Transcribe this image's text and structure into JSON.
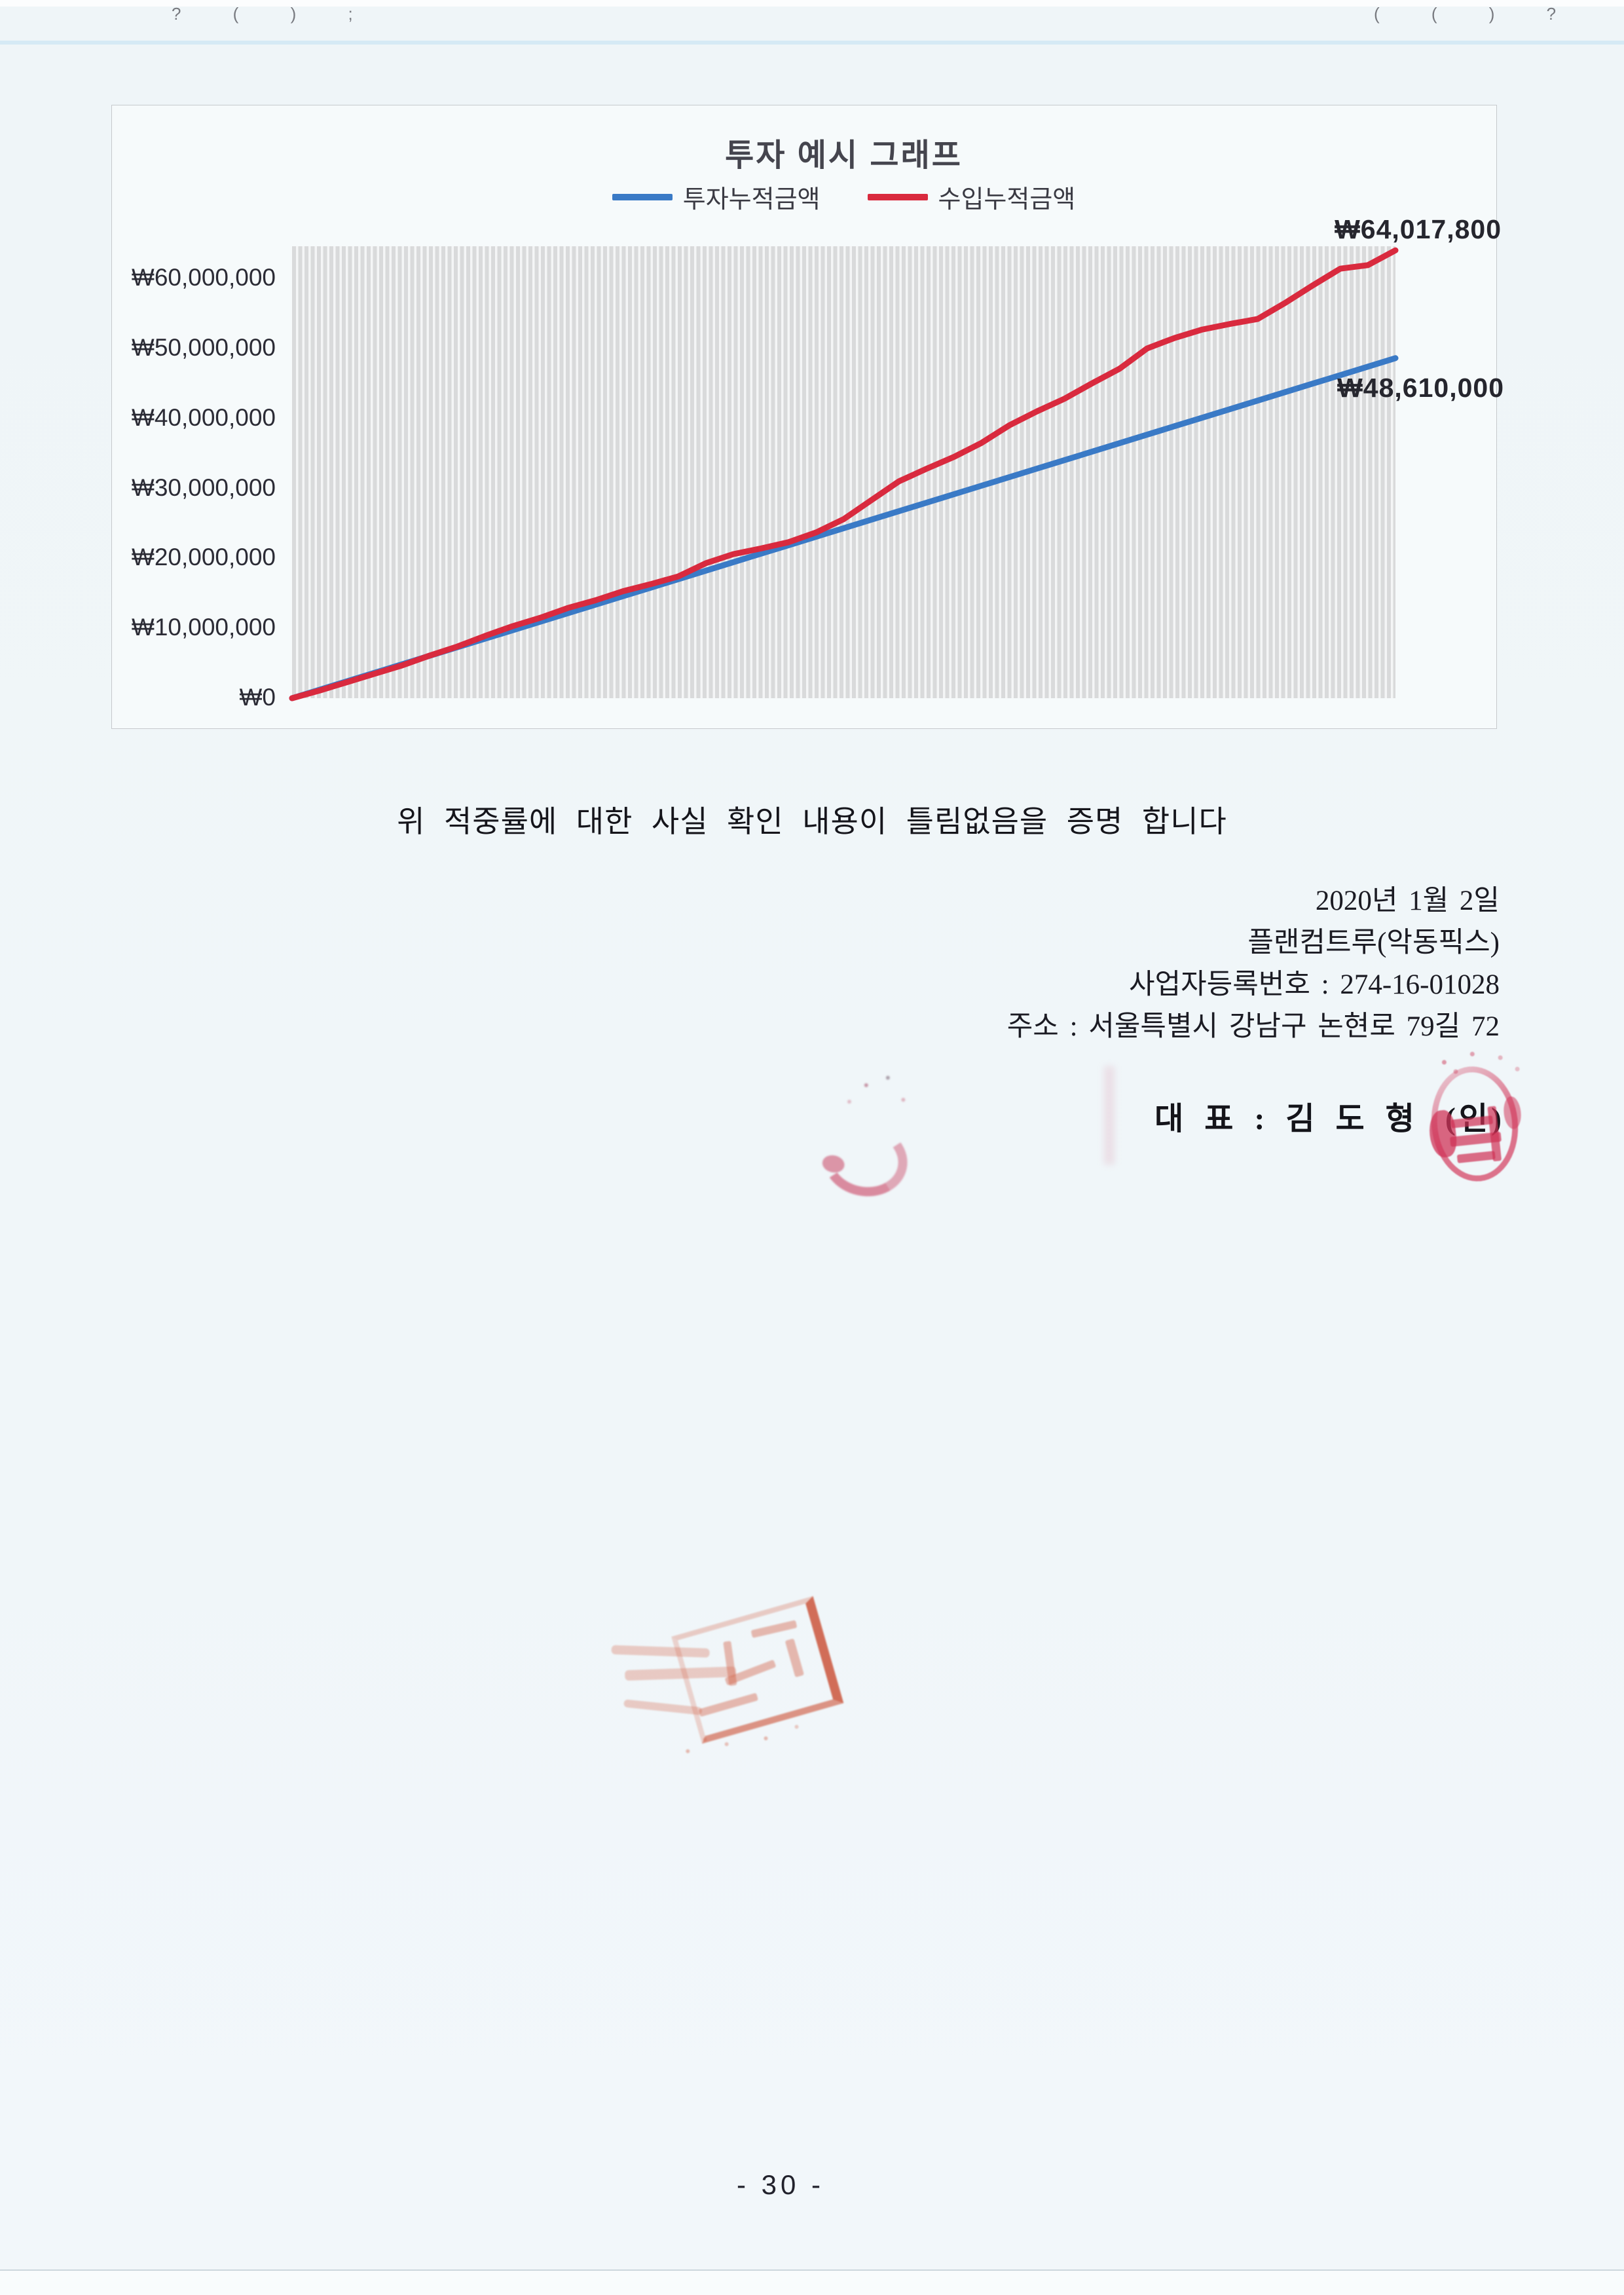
{
  "artifacts": {
    "top_left_marks": "? ( ) ;",
    "top_right_marks": "( ( ) ?"
  },
  "chart": {
    "title": "투자 예시 그래프"
  },
  "chart_data": {
    "type": "line",
    "title": "투자 예시 그래프",
    "xlabel": "",
    "ylabel": "",
    "x_mode": "fraction_of_period",
    "grid": "dense-vertical-stripes",
    "legend_position": "top",
    "ylim": [
      0,
      64600000
    ],
    "y_ticks": [
      {
        "label": "₩60,000,000",
        "value": 60000000
      },
      {
        "label": "₩50,000,000",
        "value": 50000000
      },
      {
        "label": "₩40,000,000",
        "value": 40000000
      },
      {
        "label": "₩30,000,000",
        "value": 30000000
      },
      {
        "label": "₩20,000,000",
        "value": 20000000
      },
      {
        "label": "₩10,000,000",
        "value": 10000000
      },
      {
        "label": "₩0",
        "value": 0
      }
    ],
    "x": [
      0,
      0.025,
      0.05,
      0.075,
      0.1,
      0.125,
      0.15,
      0.175,
      0.2,
      0.225,
      0.25,
      0.275,
      0.3,
      0.325,
      0.35,
      0.375,
      0.4,
      0.425,
      0.45,
      0.475,
      0.5,
      0.525,
      0.55,
      0.575,
      0.6,
      0.625,
      0.65,
      0.675,
      0.7,
      0.725,
      0.75,
      0.775,
      0.8,
      0.825,
      0.85,
      0.875,
      0.9,
      0.925,
      0.95,
      0.975,
      1
    ],
    "series": [
      {
        "name": "투자누적금액",
        "color": "#3a7ac6",
        "final_label": "₩48,610,000",
        "final_value": 48610000,
        "values": [
          0,
          1215250,
          2430500,
          3645750,
          4861000,
          6076250,
          7291500,
          8506750,
          9722000,
          10937250,
          12152500,
          13367750,
          14583000,
          15798250,
          17013500,
          18228750,
          19444000,
          20659250,
          21874500,
          23089750,
          24305000,
          25520250,
          26735500,
          27950750,
          29166000,
          30381250,
          31596500,
          32811750,
          34027000,
          35242250,
          36457500,
          37672750,
          38888000,
          40103250,
          41318500,
          42533750,
          43749000,
          44964250,
          46179500,
          47394750,
          48610000
        ]
      },
      {
        "name": "수입누적금액",
        "color": "#d92a3e",
        "final_label": "₩64,017,800",
        "final_value": 64017800,
        "values": [
          0,
          1100000,
          2300000,
          3500000,
          4700000,
          6100000,
          7400000,
          8900000,
          10300000,
          11500000,
          12900000,
          14000000,
          15300000,
          16300000,
          17400000,
          19300000,
          20600000,
          21400000,
          22300000,
          23700000,
          25600000,
          28300000,
          31000000,
          32800000,
          34500000,
          36500000,
          39000000,
          41000000,
          42800000,
          45000000,
          47100000,
          50000000,
          51500000,
          52700000,
          53500000,
          54200000,
          56500000,
          59000000,
          61400000,
          61900000,
          64017800
        ]
      }
    ]
  },
  "statement": "위 적중률에 대한 사실 확인 내용이 틀림없음을 증명 합니다",
  "closing": {
    "date": "2020년 1월 2일",
    "company": "플랜컴트루(악동픽스)",
    "registration": "사업자등록번호 : 274-16-01028",
    "address": "주소 : 서울특별시 강남구 논현로 79길 72",
    "representative": "대 표 : 김 도 형",
    "seal_suffix": "(인)"
  },
  "page": {
    "number_label": "- 30 -"
  }
}
